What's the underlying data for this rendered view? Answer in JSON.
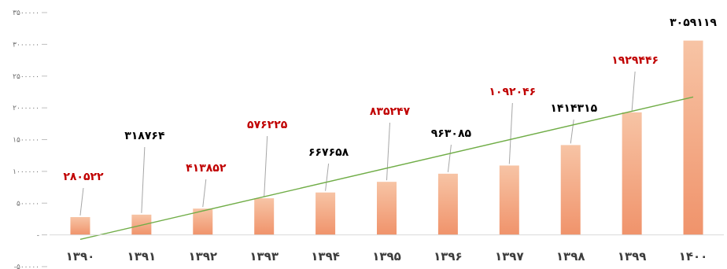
{
  "chart_data": {
    "type": "bar",
    "categories": [
      "۱۳۹۰",
      "۱۳۹۱",
      "۱۳۹۲",
      "۱۳۹۳",
      "۱۳۹۴",
      "۱۳۹۵",
      "۱۳۹۶",
      "۱۳۹۷",
      "۱۳۹۸",
      "۱۳۹۹",
      "۱۴۰۰"
    ],
    "values": [
      280522,
      318764,
      413852,
      576225,
      667658,
      835247,
      963085,
      1092046,
      1414315,
      1929446,
      3059119
    ],
    "data_labels": [
      "۲۸۰۵۲۲",
      "۳۱۸۷۶۴",
      "۴۱۳۸۵۲",
      "۵۷۶۲۲۵",
      "۶۶۷۶۵۸",
      "۸۳۵۲۴۷",
      "۹۶۳۰۸۵",
      "۱۰۹۲۰۴۶",
      "۱۴۱۴۳۱۵",
      "۱۹۲۹۴۴۶",
      "۳۰۵۹۱۱۹"
    ],
    "label_colors": [
      "#c00000",
      "#000000",
      "#c00000",
      "#c00000",
      "#000000",
      "#c00000",
      "#000000",
      "#c00000",
      "#000000",
      "#c00000",
      "#000000"
    ],
    "y_ticks": [
      "-۵۰۰۰۰۰",
      "-",
      "۵۰۰۰۰۰",
      "۱۰۰۰۰۰۰",
      "۱۵۰۰۰۰۰",
      "۲۰۰۰۰۰۰",
      "۲۵۰۰۰۰۰",
      "۳۰۰۰۰۰۰",
      "۳۵۰۰۰۰۰"
    ],
    "ylim": [
      -500000,
      3500000
    ],
    "trendline": {
      "type": "linear",
      "color": "#70ad47"
    },
    "bar_color_top": "#f7c4a5",
    "bar_color_bottom": "#f0936b",
    "title": "",
    "xlabel": "",
    "ylabel": "",
    "grid": false,
    "legend": "none"
  }
}
